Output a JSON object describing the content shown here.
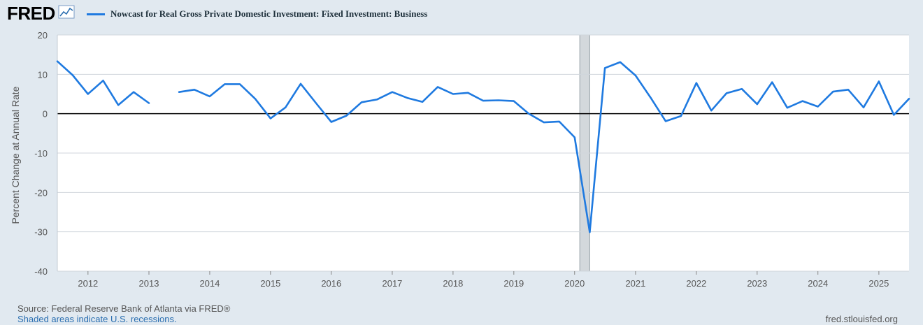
{
  "header": {
    "logo_text": "FRED",
    "logo_icon": "trend-line-icon"
  },
  "footer": {
    "source": "Source: Federal Reserve Bank of Atlanta via FRED®",
    "note": "Shaded areas indicate U.S. recessions.",
    "url": "fred.stlouisfed.org"
  },
  "colors": {
    "series": "#1f7ae0",
    "background": "#e1e9f0",
    "plot_bg": "#ffffff",
    "grid": "#d0d6dc",
    "zero_line": "#000000",
    "recession": "#d3d8dc"
  },
  "chart_data": {
    "type": "line",
    "title": "",
    "ylabel": "Percent Change at Annual Rate",
    "xlabel": "",
    "ylim": [
      -40,
      20
    ],
    "xlim": [
      "2011-07-01",
      "2025-07-01"
    ],
    "y_ticks": [
      "20",
      "10",
      "0",
      "-10",
      "-20",
      "-30",
      "-40"
    ],
    "x_ticks": [
      "2012",
      "2013",
      "2014",
      "2015",
      "2016",
      "2017",
      "2018",
      "2019",
      "2020",
      "2021",
      "2022",
      "2023",
      "2024",
      "2025"
    ],
    "grid": true,
    "legend_placement": "top-left",
    "recessions": [
      [
        "2020-02-01",
        "2020-04-01"
      ]
    ],
    "series": [
      {
        "name": "Nowcast for Real Gross Private Domestic Investment: Fixed Investment: Business",
        "x": [
          "2011-07-01",
          "2011-10-01",
          "2012-01-01",
          "2012-04-01",
          "2012-07-01",
          "2012-10-01",
          "2013-01-01",
          "2013-04-01",
          "2013-07-01",
          "2013-10-01",
          "2014-01-01",
          "2014-04-01",
          "2014-07-01",
          "2014-10-01",
          "2015-01-01",
          "2015-04-01",
          "2015-07-01",
          "2015-10-01",
          "2016-01-01",
          "2016-04-01",
          "2016-07-01",
          "2016-10-01",
          "2017-01-01",
          "2017-04-01",
          "2017-07-01",
          "2017-10-01",
          "2018-01-01",
          "2018-04-01",
          "2018-07-01",
          "2018-10-01",
          "2019-01-01",
          "2019-04-01",
          "2019-07-01",
          "2019-10-01",
          "2020-01-01",
          "2020-04-01",
          "2020-07-01",
          "2020-10-01",
          "2021-01-01",
          "2021-04-01",
          "2021-07-01",
          "2021-10-01",
          "2022-01-01",
          "2022-04-01",
          "2022-07-01",
          "2022-10-01",
          "2023-01-01",
          "2023-04-01",
          "2023-07-01",
          "2023-10-01",
          "2024-01-01",
          "2024-04-01",
          "2024-07-01",
          "2024-10-01",
          "2025-01-01",
          "2025-04-01",
          "2025-07-01"
        ],
        "values": [
          13.3,
          9.8,
          5.0,
          8.4,
          2.2,
          5.5,
          2.7,
          null,
          5.5,
          6.1,
          4.4,
          7.5,
          7.5,
          3.8,
          -1.2,
          1.6,
          7.6,
          2.7,
          -2.1,
          -0.5,
          2.9,
          3.6,
          5.5,
          4.0,
          3.0,
          6.8,
          5.0,
          5.3,
          3.3,
          3.4,
          3.2,
          0.0,
          -2.2,
          -2.0,
          -6.0,
          -30.1,
          11.6,
          13.1,
          9.7,
          4.1,
          -1.9,
          -0.6,
          7.8,
          0.8,
          5.2,
          6.3,
          2.4,
          8.0,
          1.5,
          3.2,
          1.8,
          5.6,
          6.1,
          1.6,
          8.2,
          -0.3,
          3.8
        ]
      }
    ]
  }
}
